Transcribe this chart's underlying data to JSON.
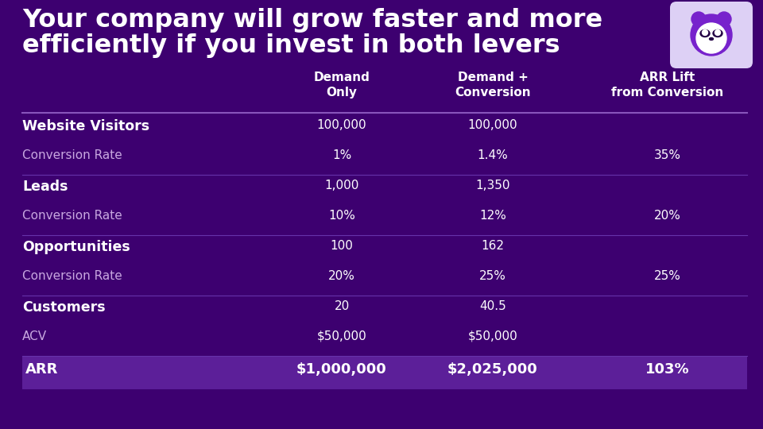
{
  "title_line1": "Your company will grow faster and more",
  "title_line2": "efficiently if you invest in both levers",
  "bg_color": "#3d0070",
  "header_row": [
    "",
    "Demand\nOnly",
    "Demand +\nConversion",
    "ARR Lift\nfrom Conversion"
  ],
  "rows": [
    {
      "label": "Website Visitors",
      "bold": true,
      "col1": "100,000",
      "col2": "100,000",
      "col3": "",
      "divider_after": false
    },
    {
      "label": "Conversion Rate",
      "bold": false,
      "col1": "1%",
      "col2": "1.4%",
      "col3": "35%",
      "divider_after": true
    },
    {
      "label": "Leads",
      "bold": true,
      "col1": "1,000",
      "col2": "1,350",
      "col3": "",
      "divider_after": false
    },
    {
      "label": "Conversion Rate",
      "bold": false,
      "col1": "10%",
      "col2": "12%",
      "col3": "20%",
      "divider_after": true
    },
    {
      "label": "Opportunities",
      "bold": true,
      "col1": "100",
      "col2": "162",
      "col3": "",
      "divider_after": false
    },
    {
      "label": "Conversion Rate",
      "bold": false,
      "col1": "20%",
      "col2": "25%",
      "col3": "25%",
      "divider_after": true
    },
    {
      "label": "Customers",
      "bold": true,
      "col1": "20",
      "col2": "40.5",
      "col3": "",
      "divider_after": false
    },
    {
      "label": "ACV",
      "bold": false,
      "col1": "$50,000",
      "col2": "$50,000",
      "col3": "",
      "divider_after": true
    }
  ],
  "footer_row": {
    "label": "ARR",
    "col1": "$1,000,000",
    "col2": "$2,025,000",
    "col3": "103%"
  },
  "white": "#ffffff",
  "light_purple": "#c8a8e0",
  "footer_bg": "#5c1f99",
  "header_divider_color": "#8855bb",
  "divider_color": "#6633aa",
  "logo_bg": "#ddd0f5",
  "logo_color": "#7722cc"
}
